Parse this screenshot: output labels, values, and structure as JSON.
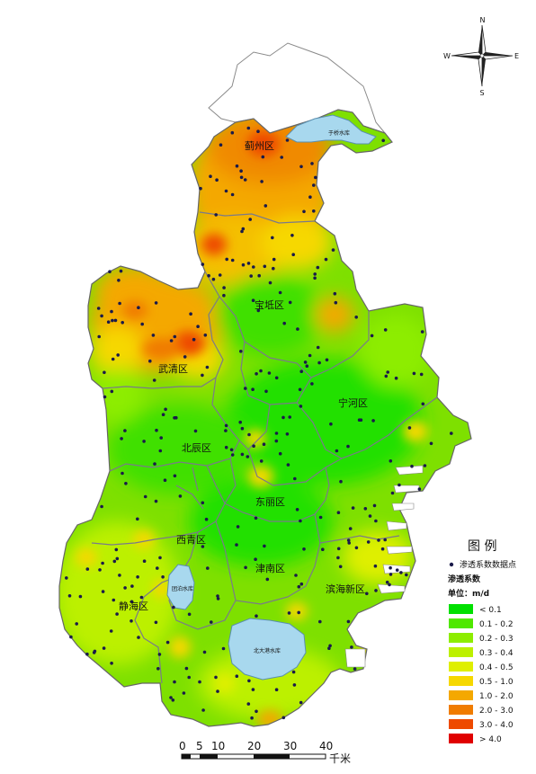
{
  "map": {
    "districts": [
      {
        "label": "蓟州区"
      },
      {
        "label": "宝坻区"
      },
      {
        "label": "武清区"
      },
      {
        "label": "宁河区"
      },
      {
        "label": "北辰区"
      },
      {
        "label": "东丽区"
      },
      {
        "label": "西青区"
      },
      {
        "label": "津南区"
      },
      {
        "label": "滨海新区"
      },
      {
        "label": "静海区"
      }
    ],
    "lakes": [
      {
        "label": "于桥水库"
      },
      {
        "label": "团泊水库"
      },
      {
        "label": "北大港水库"
      }
    ]
  },
  "compass": {
    "north": "N",
    "south": "S",
    "east": "E",
    "west": "W"
  },
  "scale_bar": {
    "ticks": [
      "0",
      "5",
      "10",
      "20",
      "30",
      "40"
    ],
    "unit": "千米"
  },
  "legend": {
    "title": "图 例",
    "point_label": "渗透系数数据点",
    "field_label": "渗透系数",
    "unit_label": "单位：m/d",
    "classes": [
      {
        "label": "< 0.1",
        "color": "#00e000"
      },
      {
        "label": "0.1 - 0.2",
        "color": "#4fe800"
      },
      {
        "label": "0.2 - 0.3",
        "color": "#8ded00"
      },
      {
        "label": "0.3 - 0.4",
        "color": "#bcf000"
      },
      {
        "label": "0.4 - 0.5",
        "color": "#dfef00"
      },
      {
        "label": "0.5 - 1.0",
        "color": "#f6d800"
      },
      {
        "label": "1.0 - 2.0",
        "color": "#f4a800"
      },
      {
        "label": "2.0 - 3.0",
        "color": "#f07c00"
      },
      {
        "label": "3.0 - 4.0",
        "color": "#ee4a00"
      },
      {
        "label": "> 4.0",
        "color": "#e00000"
      }
    ]
  }
}
